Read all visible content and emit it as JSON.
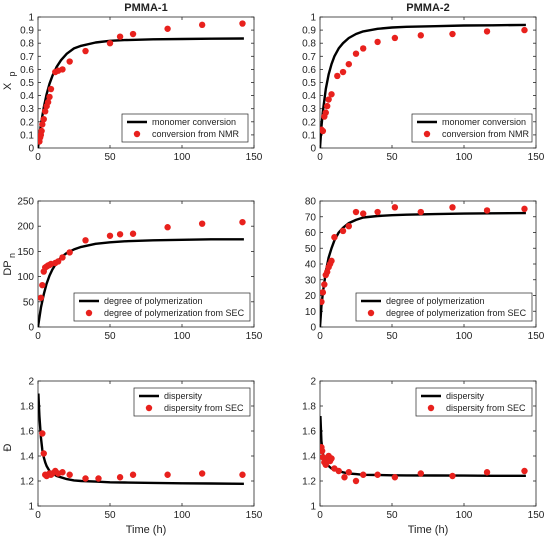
{
  "chart_data": [
    {
      "type": "line+scatter",
      "title": "PMMA-1",
      "ylabel_main": "X",
      "ylabel_sub": "p",
      "xlabel": "",
      "xlim": [
        0,
        150
      ],
      "ylim": [
        0,
        1
      ],
      "xticks": [
        "0",
        "50",
        "100",
        "150"
      ],
      "yticks": [
        "0",
        "0.1",
        "0.2",
        "0.3",
        "0.4",
        "0.5",
        "0.6",
        "0.7",
        "0.8",
        "0.9",
        "1"
      ],
      "legend_position": "bottom-right",
      "series": [
        {
          "name": "monomer conversion",
          "kind": "line",
          "x": [
            0,
            2,
            4,
            6,
            8,
            10,
            13,
            16,
            20,
            25,
            30,
            40,
            50,
            60,
            80,
            100,
            120,
            143
          ],
          "y": [
            0,
            0.18,
            0.31,
            0.41,
            0.49,
            0.55,
            0.62,
            0.67,
            0.72,
            0.76,
            0.78,
            0.805,
            0.818,
            0.824,
            0.83,
            0.832,
            0.834,
            0.836
          ]
        },
        {
          "name": "conversion from NMR",
          "kind": "scatter",
          "x": [
            1,
            1.5,
            2,
            2.5,
            3,
            4,
            5,
            6,
            7,
            8,
            9,
            12,
            14,
            17,
            22,
            33,
            50,
            57,
            66,
            90,
            114,
            142
          ],
          "y": [
            0.05,
            0.08,
            0.1,
            0.13,
            0.18,
            0.22,
            0.28,
            0.32,
            0.35,
            0.39,
            0.45,
            0.58,
            0.59,
            0.6,
            0.66,
            0.74,
            0.8,
            0.85,
            0.87,
            0.91,
            0.94,
            0.95
          ]
        }
      ]
    },
    {
      "type": "line+scatter",
      "title": "PMMA-2",
      "ylabel_main": "",
      "ylabel_sub": "",
      "xlabel": "",
      "xlim": [
        0,
        150
      ],
      "ylim": [
        0,
        1
      ],
      "xticks": [
        "0",
        "50",
        "100",
        "150"
      ],
      "yticks": [
        "0",
        "0.1",
        "0.2",
        "0.3",
        "0.4",
        "0.5",
        "0.6",
        "0.7",
        "0.8",
        "0.9",
        "1"
      ],
      "legend_position": "bottom-right",
      "series": [
        {
          "name": "monomer conversion",
          "kind": "line",
          "x": [
            0,
            1,
            2,
            4,
            6,
            8,
            10,
            13,
            16,
            20,
            25,
            30,
            40,
            50,
            60,
            80,
            100,
            120,
            143
          ],
          "y": [
            0,
            0.16,
            0.28,
            0.45,
            0.56,
            0.64,
            0.7,
            0.76,
            0.8,
            0.84,
            0.87,
            0.89,
            0.91,
            0.92,
            0.925,
            0.93,
            0.935,
            0.937,
            0.94
          ]
        },
        {
          "name": "conversion from NMR",
          "kind": "scatter",
          "x": [
            1,
            2,
            3,
            4,
            5,
            6,
            8,
            12,
            16,
            20,
            25,
            30,
            40,
            52,
            70,
            92,
            116,
            142
          ],
          "y": [
            0.14,
            0.13,
            0.24,
            0.27,
            0.32,
            0.37,
            0.41,
            0.55,
            0.58,
            0.64,
            0.72,
            0.76,
            0.81,
            0.84,
            0.86,
            0.87,
            0.89,
            0.9
          ]
        }
      ]
    },
    {
      "type": "line+scatter",
      "title": "",
      "ylabel_main": "DP",
      "ylabel_sub": "n",
      "xlabel": "",
      "xlim": [
        0,
        150
      ],
      "ylim": [
        0,
        250
      ],
      "xticks": [
        "0",
        "50",
        "100",
        "150"
      ],
      "yticks": [
        "0",
        "50",
        "100",
        "150",
        "200",
        "250"
      ],
      "legend_position": "bottom-right",
      "series": [
        {
          "name": "degree of polymerization",
          "kind": "line",
          "x": [
            0,
            2,
            4,
            6,
            8,
            10,
            13,
            16,
            20,
            25,
            30,
            40,
            50,
            60,
            80,
            100,
            120,
            143
          ],
          "y": [
            0,
            38,
            65,
            86,
            102,
            114,
            128,
            138,
            147,
            154,
            159,
            165,
            168,
            170,
            172,
            173,
            174,
            174
          ]
        },
        {
          "name": "degree of polymerization from SEC",
          "kind": "scatter",
          "x": [
            2,
            3,
            4,
            5,
            6,
            7,
            8,
            9,
            12,
            14,
            17,
            22,
            33,
            50,
            57,
            66,
            90,
            114,
            142
          ],
          "y": [
            58,
            83,
            110,
            118,
            120,
            122,
            123,
            125,
            127,
            130,
            138,
            148,
            172,
            181,
            184,
            185,
            198,
            205,
            208
          ]
        }
      ]
    },
    {
      "type": "line+scatter",
      "title": "",
      "ylabel_main": "",
      "ylabel_sub": "",
      "xlabel": "",
      "xlim": [
        0,
        150
      ],
      "ylim": [
        0,
        80
      ],
      "xticks": [
        "0",
        "50",
        "100",
        "150"
      ],
      "yticks": [
        "0",
        "10",
        "20",
        "30",
        "40",
        "50",
        "60",
        "70",
        "80"
      ],
      "legend_position": "bottom-right",
      "series": [
        {
          "name": "degree of polymerization",
          "kind": "line",
          "x": [
            0,
            1,
            2,
            4,
            6,
            8,
            10,
            13,
            16,
            20,
            25,
            30,
            40,
            50,
            60,
            80,
            100,
            120,
            143
          ],
          "y": [
            0,
            13,
            22,
            35,
            44,
            50,
            55,
            60,
            63,
            66,
            68,
            69.5,
            70.5,
            71,
            71.3,
            71.7,
            72,
            72.2,
            72.3
          ]
        },
        {
          "name": "degree of polymerization from SEC",
          "kind": "scatter",
          "x": [
            1,
            2,
            3,
            4,
            5,
            6,
            7,
            8,
            10,
            16,
            20,
            25,
            30,
            40,
            52,
            70,
            92,
            116,
            142
          ],
          "y": [
            16,
            22,
            27,
            33,
            35,
            38,
            40,
            42,
            57,
            61,
            64,
            73,
            72,
            73,
            76,
            73,
            76,
            74,
            75
          ]
        }
      ]
    },
    {
      "type": "line+scatter",
      "title": "",
      "ylabel_main": "Đ",
      "ylabel_sub": "",
      "xlabel": "Time (h)",
      "xlim": [
        0,
        150
      ],
      "ylim": [
        1,
        2
      ],
      "xticks": [
        "0",
        "50",
        "100",
        "150"
      ],
      "yticks": [
        "1",
        "1.2",
        "1.4",
        "1.6",
        "1.8",
        "2"
      ],
      "legend_position": "top-right",
      "series": [
        {
          "name": "dispersity",
          "kind": "line",
          "x": [
            0.3,
            1,
            2,
            3,
            4,
            5,
            6,
            8,
            10,
            13,
            16,
            20,
            25,
            30,
            40,
            50,
            60,
            80,
            100,
            120,
            143
          ],
          "y": [
            1.9,
            1.72,
            1.55,
            1.45,
            1.39,
            1.35,
            1.32,
            1.28,
            1.26,
            1.24,
            1.23,
            1.215,
            1.205,
            1.2,
            1.195,
            1.19,
            1.188,
            1.185,
            1.182,
            1.18,
            1.178
          ]
        },
        {
          "name": "dispersity from SEC",
          "kind": "scatter",
          "x": [
            3,
            4,
            5,
            6,
            7,
            8,
            9,
            10,
            12,
            14,
            17,
            22,
            33,
            42,
            57,
            66,
            90,
            114,
            142
          ],
          "y": [
            1.58,
            1.42,
            1.25,
            1.24,
            1.25,
            1.26,
            1.25,
            1.26,
            1.28,
            1.26,
            1.27,
            1.25,
            1.22,
            1.22,
            1.23,
            1.25,
            1.25,
            1.26,
            1.25
          ]
        }
      ]
    },
    {
      "type": "line+scatter",
      "title": "",
      "ylabel_main": "",
      "ylabel_sub": "",
      "xlabel": "Time (h)",
      "xlim": [
        0,
        150
      ],
      "ylim": [
        1,
        2
      ],
      "xticks": [
        "0",
        "50",
        "100",
        "150"
      ],
      "yticks": [
        "1",
        "1.2",
        "1.4",
        "1.6",
        "1.8",
        "2"
      ],
      "legend_position": "top-right",
      "series": [
        {
          "name": "dispersity",
          "kind": "line",
          "x": [
            0.3,
            1,
            2,
            3,
            4,
            5,
            6,
            8,
            10,
            13,
            16,
            20,
            25,
            30,
            40,
            50,
            60,
            80,
            100,
            120,
            143
          ],
          "y": [
            1.72,
            1.52,
            1.42,
            1.37,
            1.34,
            1.33,
            1.32,
            1.3,
            1.29,
            1.28,
            1.27,
            1.26,
            1.255,
            1.25,
            1.248,
            1.246,
            1.245,
            1.244,
            1.243,
            1.242,
            1.242
          ]
        },
        {
          "name": "dispersity from SEC",
          "kind": "scatter",
          "x": [
            1,
            1.5,
            2,
            3,
            4,
            5,
            6,
            7,
            8,
            10,
            13,
            17,
            20,
            25,
            30,
            40,
            52,
            70,
            92,
            116,
            142
          ],
          "y": [
            1.47,
            1.44,
            1.39,
            1.35,
            1.33,
            1.37,
            1.4,
            1.36,
            1.38,
            1.3,
            1.28,
            1.23,
            1.27,
            1.2,
            1.25,
            1.25,
            1.23,
            1.26,
            1.24,
            1.27,
            1.28
          ]
        }
      ]
    }
  ],
  "colors": {
    "line": "#000000",
    "marker": "#e8211d",
    "axis": "#262626"
  }
}
